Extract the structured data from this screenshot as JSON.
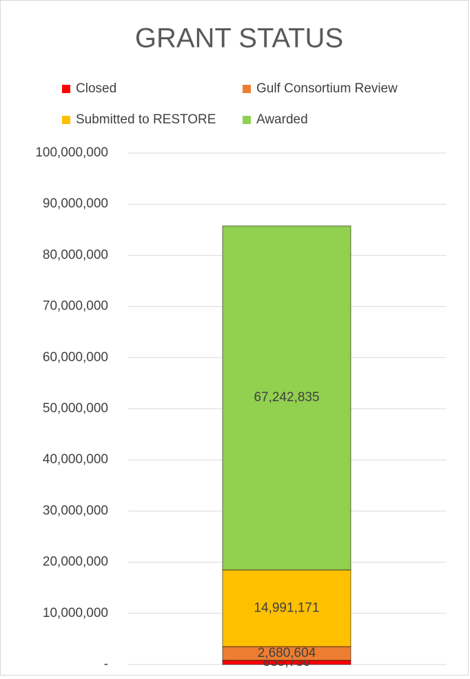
{
  "chart_data": {
    "type": "stacked_bar",
    "title": "GRANT STATUS",
    "categories": [
      null
    ],
    "series": [
      {
        "name": "Closed",
        "color": "#ff0000",
        "values": [
          835730
        ],
        "value_labels": [
          "835,730"
        ]
      },
      {
        "name": "Gulf Consortium Review",
        "color": "#ed7d31",
        "values": [
          2680604
        ],
        "value_labels": [
          "2,680,604"
        ]
      },
      {
        "name": "Submitted to RESTORE",
        "color": "#ffc000",
        "values": [
          14991171
        ],
        "value_labels": [
          "14,991,171"
        ]
      },
      {
        "name": "Awarded",
        "color": "#92d050",
        "values": [
          67242835
        ],
        "value_labels": [
          "67,242,835"
        ]
      }
    ],
    "ylim": [
      0,
      100000000
    ],
    "yticks": [
      {
        "value": 0,
        "label": "-"
      },
      {
        "value": 10000000,
        "label": "10,000,000"
      },
      {
        "value": 20000000,
        "label": "20,000,000"
      },
      {
        "value": 30000000,
        "label": "30,000,000"
      },
      {
        "value": 40000000,
        "label": "40,000,000"
      },
      {
        "value": 50000000,
        "label": "50,000,000"
      },
      {
        "value": 60000000,
        "label": "60,000,000"
      },
      {
        "value": 70000000,
        "label": "70,000,000"
      },
      {
        "value": 80000000,
        "label": "80,000,000"
      },
      {
        "value": 90000000,
        "label": "90,000,000"
      },
      {
        "value": 100000000,
        "label": "100,000,000"
      }
    ],
    "grid": true,
    "legend": "top"
  }
}
